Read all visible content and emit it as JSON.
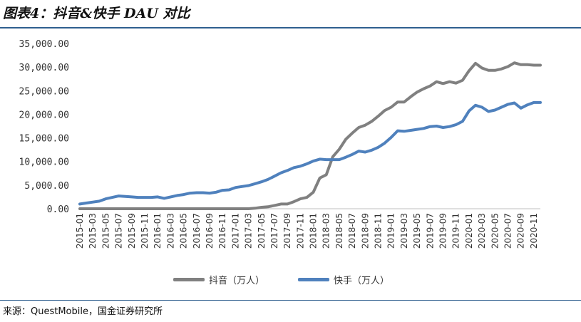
{
  "title": "图表4：抖音&快手 DAU 对比",
  "source": "来源：QuestMobile，国金证券研究所",
  "colors": {
    "douyin": "#808080",
    "kuaishou": "#4f81bd",
    "rule": "#2f5f8f"
  },
  "chart_data": {
    "type": "line",
    "title": "",
    "xlabel": "",
    "ylabel": "",
    "ylim": [
      0,
      35000
    ],
    "yticks": [
      "35,000.00",
      "30,000.00",
      "25,000.00",
      "20,000.00",
      "15,000.00",
      "10,000.00",
      "5,000.00",
      "0.00"
    ],
    "grid": false,
    "legend_position": "bottom",
    "x": [
      "2015-01",
      "2015-02",
      "2015-03",
      "2015-04",
      "2015-05",
      "2015-06",
      "2015-07",
      "2015-08",
      "2015-09",
      "2015-10",
      "2015-11",
      "2015-12",
      "2016-01",
      "2016-02",
      "2016-03",
      "2016-04",
      "2016-05",
      "2016-06",
      "2016-07",
      "2016-08",
      "2016-09",
      "2016-10",
      "2016-11",
      "2016-12",
      "2017-01",
      "2017-02",
      "2017-03",
      "2017-04",
      "2017-05",
      "2017-06",
      "2017-07",
      "2017-08",
      "2017-09",
      "2017-10",
      "2017-11",
      "2017-12",
      "2018-01",
      "2018-02",
      "2018-03",
      "2018-04",
      "2018-05",
      "2018-06",
      "2018-07",
      "2018-08",
      "2018-09",
      "2018-10",
      "2018-11",
      "2018-12",
      "2019-01",
      "2019-02",
      "2019-03",
      "2019-04",
      "2019-05",
      "2019-06",
      "2019-07",
      "2019-08",
      "2019-09",
      "2019-10",
      "2019-11",
      "2019-12",
      "2020-01",
      "2020-02",
      "2020-03",
      "2020-04",
      "2020-05",
      "2020-06",
      "2020-07",
      "2020-08",
      "2020-09",
      "2020-10",
      "2020-11",
      "2020-12"
    ],
    "xticks_shown": [
      "2015-01",
      "2015-03",
      "2015-05",
      "2015-07",
      "2015-09",
      "2015-11",
      "2016-01",
      "2016-03",
      "2016-05",
      "2016-07",
      "2016-09",
      "2016-11",
      "2017-01",
      "2017-03",
      "2017-05",
      "2017-07",
      "2017-09",
      "2017-11",
      "2018-01",
      "2018-03",
      "2018-05",
      "2018-07",
      "2018-09",
      "2018-11",
      "2019-01",
      "2019-03",
      "2019-05",
      "2019-07",
      "2019-09",
      "2019-11",
      "2020-01",
      "2020-03",
      "2020-05",
      "2020-07",
      "2020-09",
      "2020-11"
    ],
    "series": [
      {
        "name": "抖音（万人）",
        "color": "#808080",
        "values": [
          0,
          0,
          0,
          0,
          0,
          0,
          0,
          0,
          0,
          0,
          0,
          0,
          0,
          0,
          0,
          0,
          0,
          0,
          0,
          0,
          0,
          0,
          0,
          0,
          0,
          0,
          0,
          100,
          300,
          400,
          700,
          1000,
          1000,
          1500,
          2100,
          2400,
          3500,
          6500,
          7200,
          11000,
          12600,
          14700,
          16000,
          17200,
          17700,
          18500,
          19600,
          20800,
          21500,
          22600,
          22600,
          23700,
          24700,
          25400,
          26000,
          26900,
          26500,
          26900,
          26600,
          27200,
          29200,
          30800,
          29800,
          29300,
          29300,
          29600,
          30100,
          30900,
          30500,
          30500,
          30400,
          30400
        ]
      },
      {
        "name": "快手（万人）",
        "color": "#4f81bd",
        "values": [
          1000,
          1200,
          1400,
          1600,
          2100,
          2400,
          2700,
          2600,
          2500,
          2400,
          2400,
          2400,
          2500,
          2200,
          2500,
          2800,
          3000,
          3300,
          3400,
          3400,
          3300,
          3500,
          3900,
          4000,
          4500,
          4700,
          4900,
          5300,
          5700,
          6200,
          6900,
          7600,
          8100,
          8700,
          9000,
          9500,
          10100,
          10500,
          10400,
          10400,
          10400,
          10900,
          11500,
          12200,
          12000,
          12400,
          13000,
          13900,
          15100,
          16500,
          16400,
          16600,
          16800,
          17000,
          17400,
          17500,
          17200,
          17400,
          17800,
          18500,
          20700,
          21900,
          21500,
          20600,
          20900,
          21500,
          22100,
          22400,
          21300,
          22000,
          22500,
          22500
        ]
      }
    ]
  }
}
